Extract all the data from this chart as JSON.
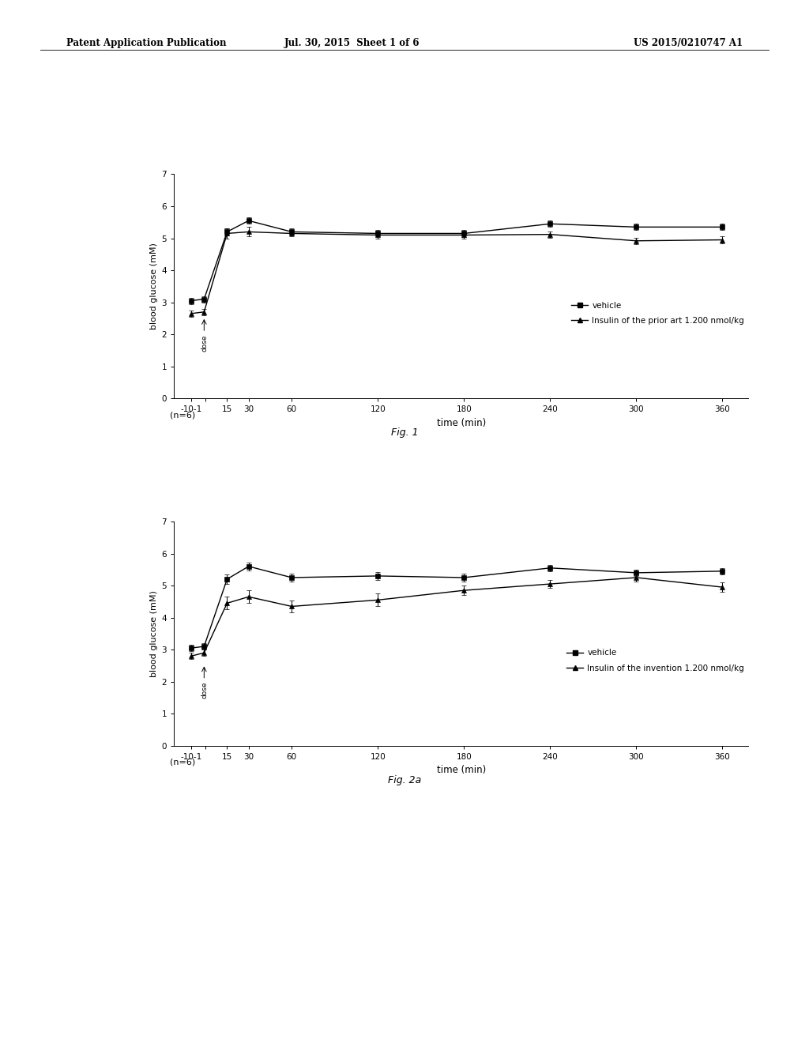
{
  "header_left": "Patent Application Publication",
  "header_center": "Jul. 30, 2015  Sheet 1 of 6",
  "header_right": "US 2015/0210747 A1",
  "fig1": {
    "xlabel": "time (min)",
    "ylabel": "blood glucose (mM)",
    "ylim": [
      0,
      7
    ],
    "yticks": [
      0,
      1,
      2,
      3,
      4,
      5,
      6,
      7
    ],
    "vehicle_x": [
      -10,
      -1,
      15,
      30,
      60,
      120,
      180,
      240,
      300,
      360
    ],
    "vehicle_y": [
      3.05,
      3.1,
      5.2,
      5.55,
      5.2,
      5.15,
      5.15,
      5.45,
      5.35,
      5.35
    ],
    "vehicle_yerr": [
      0.1,
      0.1,
      0.12,
      0.1,
      0.1,
      0.1,
      0.12,
      0.1,
      0.1,
      0.1
    ],
    "insulin_x": [
      -10,
      -1,
      15,
      30,
      60,
      120,
      180,
      240,
      300,
      360
    ],
    "insulin_y": [
      2.65,
      2.7,
      5.15,
      5.2,
      5.15,
      5.1,
      5.1,
      5.12,
      4.92,
      4.95
    ],
    "insulin_yerr": [
      0.1,
      0.1,
      0.15,
      0.15,
      0.1,
      0.1,
      0.1,
      0.1,
      0.1,
      0.1
    ],
    "legend_vehicle": "vehicle",
    "legend_insulin": "Insulin of the prior art 1.200 nmol/kg",
    "caption": "(n=6)",
    "fig_label": "Fig. 1"
  },
  "fig2a": {
    "xlabel": "time (min)",
    "ylabel": "blood glucose (mM)",
    "ylim": [
      0,
      7
    ],
    "yticks": [
      0,
      1,
      2,
      3,
      4,
      5,
      6,
      7
    ],
    "vehicle_x": [
      -10,
      -1,
      15,
      30,
      60,
      120,
      180,
      240,
      300,
      360
    ],
    "vehicle_y": [
      3.05,
      3.1,
      5.2,
      5.6,
      5.25,
      5.3,
      5.25,
      5.55,
      5.4,
      5.45
    ],
    "vehicle_yerr": [
      0.1,
      0.1,
      0.15,
      0.12,
      0.12,
      0.12,
      0.12,
      0.1,
      0.1,
      0.1
    ],
    "insulin_x": [
      -10,
      -1,
      15,
      30,
      60,
      120,
      180,
      240,
      300,
      360
    ],
    "insulin_y": [
      2.8,
      2.9,
      4.45,
      4.65,
      4.35,
      4.55,
      4.85,
      5.05,
      5.25,
      4.95
    ],
    "insulin_yerr": [
      0.1,
      0.1,
      0.2,
      0.2,
      0.18,
      0.2,
      0.15,
      0.12,
      0.12,
      0.15
    ],
    "legend_vehicle": "vehicle",
    "legend_insulin": "Insulin of the invention 1.200 nmol/kg",
    "caption": "(n=6)",
    "fig_label": "Fig. 2a"
  },
  "bg_color": "#ffffff",
  "line_color": "#000000",
  "marker_vehicle": "s",
  "marker_insulin": "^",
  "markersize": 4,
  "linewidth": 1.0,
  "capsize": 2,
  "elinewidth": 0.7,
  "xlim": [
    -22,
    378
  ],
  "xtick_positions": [
    -10,
    0,
    15,
    30,
    60,
    120,
    180,
    240,
    300,
    360
  ],
  "xtick_labels": [
    "-10-1",
    "",
    "15",
    "30",
    "60",
    "120",
    "180",
    "240",
    "300",
    "360"
  ]
}
